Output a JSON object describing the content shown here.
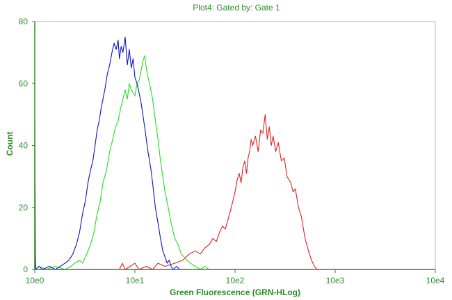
{
  "colors": {
    "axis": "#2a8a2a",
    "text": "#2a8a2a",
    "plot_border": "#b3b3b3",
    "red_series": "#e02020",
    "green_series": "#22dd22",
    "blue_series": "#1010cc"
  },
  "chart_data": {
    "type": "line",
    "title": "Plot4:  Gated by: Gate 1",
    "xlabel": "Green Fluorescence (GRN-HLog)",
    "ylabel": "Count",
    "xscale": "log",
    "xlim": [
      1,
      10000
    ],
    "ylim": [
      0,
      80
    ],
    "grid": false,
    "x_ticks": [
      {
        "value": 1,
        "label": "10e0"
      },
      {
        "value": 10,
        "label": "10e1"
      },
      {
        "value": 100,
        "label": "10e2"
      },
      {
        "value": 1000,
        "label": "10e3"
      },
      {
        "value": 10000,
        "label": "10e4"
      }
    ],
    "y_ticks": [
      {
        "value": 0,
        "label": "0"
      },
      {
        "value": 20,
        "label": "20"
      },
      {
        "value": 40,
        "label": "40"
      },
      {
        "value": 60,
        "label": "60"
      },
      {
        "value": 80,
        "label": "80"
      }
    ],
    "series": [
      {
        "color": "red_series",
        "points": [
          [
            1.0,
            0
          ],
          [
            1.0,
            47
          ],
          [
            1.02,
            0
          ],
          [
            2.5,
            0
          ],
          [
            4.0,
            0
          ],
          [
            7.0,
            0
          ],
          [
            7.5,
            2
          ],
          [
            8,
            0
          ],
          [
            9,
            1
          ],
          [
            10,
            2
          ],
          [
            11,
            0
          ],
          [
            13,
            1
          ],
          [
            15,
            0
          ],
          [
            17,
            2
          ],
          [
            20,
            1
          ],
          [
            25,
            2
          ],
          [
            30,
            3
          ],
          [
            35,
            5
          ],
          [
            40,
            6
          ],
          [
            45,
            5
          ],
          [
            50,
            7
          ],
          [
            55,
            8
          ],
          [
            60,
            10
          ],
          [
            65,
            9
          ],
          [
            70,
            12
          ],
          [
            75,
            14
          ],
          [
            80,
            13
          ],
          [
            85,
            16
          ],
          [
            90,
            19
          ],
          [
            95,
            22
          ],
          [
            100,
            25
          ],
          [
            105,
            29
          ],
          [
            110,
            31
          ],
          [
            115,
            28
          ],
          [
            120,
            33
          ],
          [
            125,
            35
          ],
          [
            130,
            31
          ],
          [
            135,
            36
          ],
          [
            140,
            38
          ],
          [
            145,
            42
          ],
          [
            150,
            40
          ],
          [
            160,
            43
          ],
          [
            170,
            38
          ],
          [
            180,
            45
          ],
          [
            190,
            44
          ],
          [
            200,
            50
          ],
          [
            210,
            42
          ],
          [
            220,
            46
          ],
          [
            230,
            40
          ],
          [
            240,
            43
          ],
          [
            255,
            38
          ],
          [
            270,
            41
          ],
          [
            290,
            35
          ],
          [
            310,
            36
          ],
          [
            330,
            30
          ],
          [
            360,
            28
          ],
          [
            380,
            25
          ],
          [
            400,
            26
          ],
          [
            430,
            20
          ],
          [
            460,
            17
          ],
          [
            500,
            10
          ],
          [
            540,
            6
          ],
          [
            580,
            3
          ],
          [
            620,
            1
          ],
          [
            660,
            0
          ],
          [
            700,
            0
          ]
        ]
      },
      {
        "color": "green_series",
        "points": [
          [
            1.0,
            16
          ],
          [
            1.02,
            0
          ],
          [
            1.1,
            1
          ],
          [
            1.3,
            0
          ],
          [
            1.6,
            1
          ],
          [
            2.0,
            0
          ],
          [
            2.3,
            1
          ],
          [
            2.5,
            2
          ],
          [
            2.8,
            3
          ],
          [
            3.0,
            2
          ],
          [
            3.3,
            5
          ],
          [
            3.6,
            8
          ],
          [
            3.9,
            12
          ],
          [
            4.2,
            18
          ],
          [
            4.5,
            22
          ],
          [
            4.8,
            28
          ],
          [
            5.2,
            32
          ],
          [
            5.6,
            38
          ],
          [
            6.0,
            42
          ],
          [
            6.4,
            46
          ],
          [
            6.8,
            48
          ],
          [
            7.2,
            52
          ],
          [
            7.6,
            55
          ],
          [
            8.0,
            58
          ],
          [
            8.4,
            55
          ],
          [
            8.8,
            60
          ],
          [
            9.2,
            58
          ],
          [
            9.6,
            57
          ],
          [
            10.0,
            56
          ],
          [
            10.5,
            60
          ],
          [
            11.0,
            61
          ],
          [
            11.5,
            64
          ],
          [
            12.0,
            67
          ],
          [
            12.5,
            69
          ],
          [
            13.0,
            65
          ],
          [
            13.5,
            62
          ],
          [
            14.0,
            60
          ],
          [
            15.0,
            55
          ],
          [
            16.0,
            48
          ],
          [
            17.0,
            42
          ],
          [
            18.0,
            35
          ],
          [
            19.0,
            30
          ],
          [
            20.0,
            25
          ],
          [
            21.5,
            20
          ],
          [
            23,
            15
          ],
          [
            25,
            10
          ],
          [
            27,
            8
          ],
          [
            29,
            5
          ],
          [
            31,
            4
          ],
          [
            33,
            3
          ],
          [
            36,
            2
          ],
          [
            40,
            1
          ],
          [
            45,
            0
          ],
          [
            50,
            1
          ],
          [
            55,
            0
          ]
        ]
      },
      {
        "color": "blue_series",
        "points": [
          [
            1.0,
            10
          ],
          [
            1.02,
            0
          ],
          [
            1.1,
            1
          ],
          [
            1.2,
            0
          ],
          [
            1.4,
            1
          ],
          [
            1.6,
            0
          ],
          [
            1.8,
            1
          ],
          [
            2.0,
            2
          ],
          [
            2.2,
            3
          ],
          [
            2.4,
            5
          ],
          [
            2.6,
            8
          ],
          [
            2.8,
            12
          ],
          [
            3.0,
            18
          ],
          [
            3.2,
            22
          ],
          [
            3.4,
            28
          ],
          [
            3.6,
            32
          ],
          [
            3.8,
            35
          ],
          [
            4.0,
            40
          ],
          [
            4.2,
            45
          ],
          [
            4.4,
            48
          ],
          [
            4.6,
            52
          ],
          [
            4.8,
            55
          ],
          [
            5.0,
            58
          ],
          [
            5.3,
            63
          ],
          [
            5.6,
            66
          ],
          [
            5.9,
            70
          ],
          [
            6.2,
            73
          ],
          [
            6.5,
            71
          ],
          [
            6.8,
            74
          ],
          [
            7.0,
            68
          ],
          [
            7.3,
            72
          ],
          [
            7.6,
            70
          ],
          [
            8.0,
            75
          ],
          [
            8.4,
            66
          ],
          [
            8.8,
            71
          ],
          [
            9.2,
            65
          ],
          [
            9.6,
            68
          ],
          [
            10.0,
            62
          ],
          [
            10.5,
            60
          ],
          [
            11.0,
            57
          ],
          [
            11.5,
            54
          ],
          [
            12.0,
            50
          ],
          [
            12.5,
            46
          ],
          [
            13.0,
            42
          ],
          [
            13.5,
            38
          ],
          [
            14.0,
            35
          ],
          [
            14.5,
            32
          ],
          [
            15.0,
            28
          ],
          [
            16.0,
            20
          ],
          [
            17.0,
            15
          ],
          [
            18.0,
            10
          ],
          [
            19.0,
            6
          ],
          [
            20.0,
            4
          ],
          [
            21.0,
            2
          ],
          [
            22.0,
            3
          ],
          [
            23.0,
            1
          ],
          [
            24.0,
            0
          ],
          [
            26.0,
            1
          ],
          [
            28.0,
            0
          ],
          [
            30.0,
            0
          ]
        ]
      }
    ]
  }
}
